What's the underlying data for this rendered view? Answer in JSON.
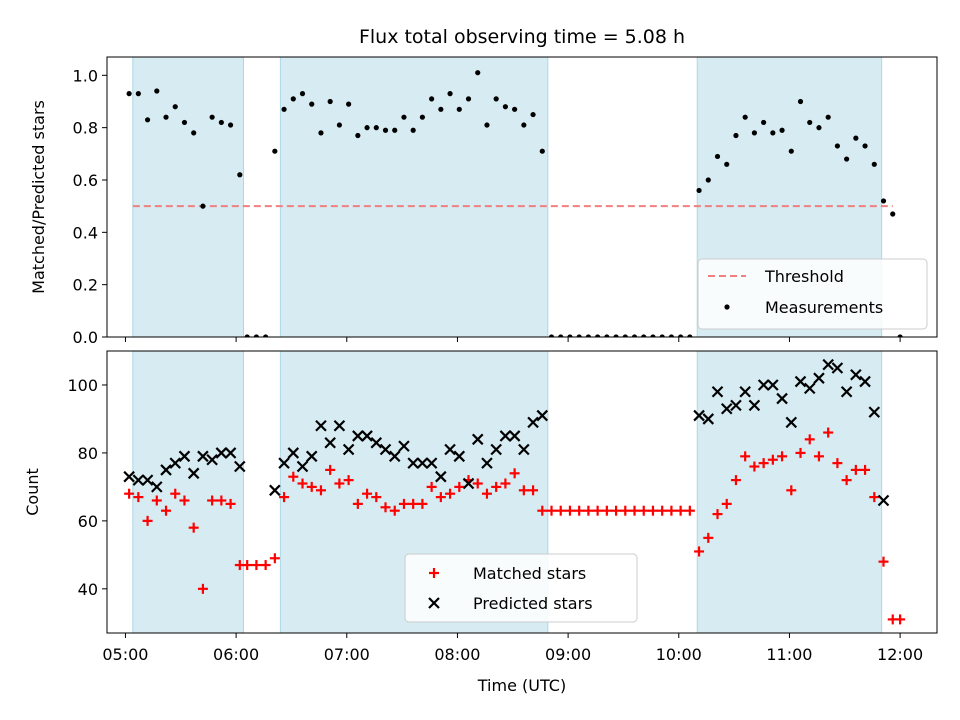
{
  "title": "Flux total observing time = 5.08 h",
  "colors": {
    "band": "#add8e6",
    "threshold": "#f08080",
    "measurement": "#000000",
    "matched": "#ff0000",
    "predicted": "#000000"
  },
  "chart_data": [
    {
      "type": "scatter",
      "panel": "top",
      "ylabel": "Matched/Predicted stars",
      "ylim": [
        0,
        1.07
      ],
      "yticks": [
        "0.0",
        "0.2",
        "0.4",
        "0.6",
        "0.8",
        "1.0"
      ],
      "ytick_values": [
        0,
        0.2,
        0.4,
        0.6,
        0.8,
        1.0
      ],
      "xlim": [
        "04:50",
        "12:20"
      ],
      "shaded_intervals": [
        [
          "05:04",
          "06:04"
        ],
        [
          "06:24",
          "08:49"
        ],
        [
          "10:10",
          "11:50"
        ]
      ],
      "threshold": {
        "name": "Threshold",
        "value": 0.5
      },
      "legend": [
        "Threshold",
        "Measurements"
      ],
      "legend_position": "lower right",
      "series": [
        {
          "name": "Measurements",
          "x": [
            "05:02",
            "05:07",
            "05:12",
            "05:17",
            "05:22",
            "05:27",
            "05:32",
            "05:37",
            "05:42",
            "05:47",
            "05:52",
            "05:57",
            "06:02",
            "06:06",
            "06:11",
            "06:16",
            "06:21",
            "06:26",
            "06:31",
            "06:36",
            "06:41",
            "06:46",
            "06:51",
            "06:56",
            "07:01",
            "07:06",
            "07:11",
            "07:16",
            "07:21",
            "07:26",
            "07:31",
            "07:36",
            "07:41",
            "07:46",
            "07:51",
            "07:56",
            "08:01",
            "08:06",
            "08:11",
            "08:16",
            "08:21",
            "08:26",
            "08:31",
            "08:36",
            "08:41",
            "08:46",
            "08:51",
            "08:56",
            "09:01",
            "09:06",
            "09:11",
            "09:16",
            "09:21",
            "09:26",
            "09:31",
            "09:36",
            "09:41",
            "09:46",
            "09:51",
            "09:56",
            "10:01",
            "10:06",
            "10:11",
            "10:16",
            "10:21",
            "10:26",
            "10:31",
            "10:36",
            "10:41",
            "10:46",
            "10:51",
            "10:56",
            "11:01",
            "11:06",
            "11:11",
            "11:16",
            "11:21",
            "11:26",
            "11:31",
            "11:36",
            "11:41",
            "11:46",
            "11:51",
            "11:56",
            "12:00"
          ],
          "y": [
            0.93,
            0.93,
            0.83,
            0.94,
            0.84,
            0.88,
            0.82,
            0.78,
            0.5,
            0.84,
            0.82,
            0.81,
            0.62,
            0.0,
            0.0,
            0.0,
            0.71,
            0.87,
            0.91,
            0.93,
            0.89,
            0.78,
            0.9,
            0.81,
            0.89,
            0.77,
            0.8,
            0.8,
            0.79,
            0.79,
            0.84,
            0.79,
            0.84,
            0.91,
            0.87,
            0.93,
            0.87,
            0.91,
            1.01,
            0.81,
            0.91,
            0.88,
            0.87,
            0.81,
            0.85,
            0.71,
            0.0,
            0.0,
            0.0,
            0.0,
            0.0,
            0.0,
            0.0,
            0.0,
            0.0,
            0.0,
            0.0,
            0.0,
            0.0,
            0.0,
            0.0,
            0.0,
            0.56,
            0.6,
            0.69,
            0.66,
            0.77,
            0.84,
            0.78,
            0.82,
            0.78,
            0.79,
            0.71,
            0.9,
            0.82,
            0.8,
            0.84,
            0.73,
            0.68,
            0.76,
            0.73,
            0.66,
            0.52,
            0.47,
            0.0
          ]
        }
      ]
    },
    {
      "type": "scatter",
      "panel": "bottom",
      "title": "",
      "ylabel": "Count",
      "xlabel": "Time (UTC)",
      "ylim": [
        27,
        110
      ],
      "yticks": [
        "40",
        "60",
        "80",
        "100"
      ],
      "ytick_values": [
        40,
        60,
        80,
        100
      ],
      "xlim": [
        "04:50",
        "12:20"
      ],
      "xticks": [
        "05:00",
        "06:00",
        "07:00",
        "08:00",
        "09:00",
        "10:00",
        "11:00",
        "12:00"
      ],
      "shaded_intervals": [
        [
          "05:04",
          "06:04"
        ],
        [
          "06:24",
          "08:49"
        ],
        [
          "10:10",
          "11:50"
        ]
      ],
      "legend": [
        "Matched stars",
        "Predicted stars"
      ],
      "legend_position": "lower center",
      "series": [
        {
          "name": "Matched stars",
          "x": [
            "05:02",
            "05:07",
            "05:12",
            "05:17",
            "05:22",
            "05:27",
            "05:32",
            "05:37",
            "05:42",
            "05:47",
            "05:52",
            "05:57",
            "06:02",
            "06:06",
            "06:11",
            "06:16",
            "06:21",
            "06:26",
            "06:31",
            "06:36",
            "06:41",
            "06:46",
            "06:51",
            "06:56",
            "07:01",
            "07:06",
            "07:11",
            "07:16",
            "07:21",
            "07:26",
            "07:31",
            "07:36",
            "07:41",
            "07:46",
            "07:51",
            "07:56",
            "08:01",
            "08:06",
            "08:11",
            "08:16",
            "08:21",
            "08:26",
            "08:31",
            "08:36",
            "08:41",
            "08:46",
            "08:51",
            "08:56",
            "09:01",
            "09:06",
            "09:11",
            "09:16",
            "09:21",
            "09:26",
            "09:31",
            "09:36",
            "09:41",
            "09:46",
            "09:51",
            "09:56",
            "10:01",
            "10:06",
            "10:11",
            "10:16",
            "10:21",
            "10:26",
            "10:31",
            "10:36",
            "10:41",
            "10:46",
            "10:51",
            "10:56",
            "11:01",
            "11:06",
            "11:11",
            "11:16",
            "11:21",
            "11:26",
            "11:31",
            "11:36",
            "11:41",
            "11:46",
            "11:51",
            "11:56",
            "12:00"
          ],
          "y": [
            68,
            67,
            60,
            66,
            63,
            68,
            66,
            58,
            40,
            66,
            66,
            65,
            47,
            47,
            47,
            47,
            49,
            67,
            73,
            71,
            70,
            69,
            75,
            71,
            72,
            65,
            68,
            67,
            64,
            63,
            65,
            65,
            65,
            70,
            67,
            68,
            70,
            72,
            71,
            68,
            70,
            71,
            74,
            69,
            69,
            63,
            63,
            63,
            63,
            63,
            63,
            63,
            63,
            63,
            63,
            63,
            63,
            63,
            63,
            63,
            63,
            63,
            51,
            55,
            62,
            65,
            72,
            79,
            76,
            77,
            78,
            79,
            69,
            80,
            84,
            79,
            86,
            77,
            72,
            75,
            75,
            67,
            48,
            31,
            31
          ]
        },
        {
          "name": "Predicted stars",
          "x": [
            "05:02",
            "05:07",
            "05:12",
            "05:17",
            "05:22",
            "05:27",
            "05:32",
            "05:37",
            "05:42",
            "05:47",
            "05:52",
            "05:57",
            "06:02",
            "06:21",
            "06:26",
            "06:31",
            "06:36",
            "06:41",
            "06:46",
            "06:51",
            "06:56",
            "07:01",
            "07:06",
            "07:11",
            "07:16",
            "07:21",
            "07:26",
            "07:31",
            "07:36",
            "07:41",
            "07:46",
            "07:51",
            "07:56",
            "08:01",
            "08:06",
            "08:11",
            "08:16",
            "08:21",
            "08:26",
            "08:31",
            "08:36",
            "08:41",
            "08:46",
            "10:11",
            "10:16",
            "10:21",
            "10:26",
            "10:31",
            "10:36",
            "10:41",
            "10:46",
            "10:51",
            "10:56",
            "11:01",
            "11:06",
            "11:11",
            "11:16",
            "11:21",
            "11:26",
            "11:31",
            "11:36",
            "11:41",
            "11:46",
            "11:51",
            "11:56"
          ],
          "y": [
            73,
            72,
            72,
            70,
            75,
            77,
            79,
            74,
            79,
            78,
            80,
            80,
            76,
            69,
            77,
            80,
            76,
            79,
            88,
            83,
            88,
            81,
            85,
            85,
            83,
            81,
            79,
            82,
            77,
            77,
            77,
            73,
            81,
            79,
            71,
            84,
            77,
            81,
            85,
            85,
            81,
            89,
            91,
            91,
            90,
            98,
            93,
            94,
            98,
            94,
            100,
            100,
            96,
            89,
            101,
            99,
            102,
            106,
            105,
            98,
            103,
            101,
            92,
            66,
            null
          ]
        }
      ]
    }
  ]
}
